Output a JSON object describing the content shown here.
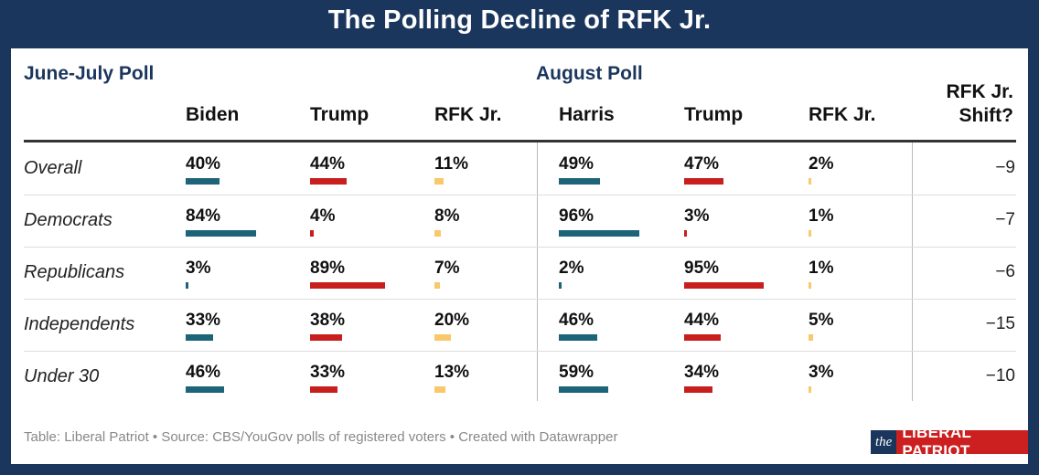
{
  "title": "The Polling Decline of RFK Jr.",
  "groups": {
    "first": "June-July Poll",
    "second": "August Poll"
  },
  "columns": [
    "Biden",
    "Trump",
    "RFK Jr.",
    "Harris",
    "Trump",
    "RFK Jr."
  ],
  "shift_header": "RFK Jr. Shift?",
  "colors": {
    "democrat": "#1d6479",
    "republican": "#c81e1e",
    "rfk": "#f8c86a",
    "background": "#1b365d"
  },
  "source": "Table: Liberal Patriot • Source: CBS/YouGov polls of registered voters • Created with Datawrapper",
  "logo": {
    "the": "the",
    "name": "LIBERAL PATRIOT"
  },
  "chart_data": {
    "type": "table",
    "title": "The Polling Decline of RFK Jr.",
    "column_groups": [
      {
        "name": "June-July Poll",
        "columns": [
          "Biden",
          "Trump",
          "RFK Jr."
        ]
      },
      {
        "name": "August Poll",
        "columns": [
          "Harris",
          "Trump",
          "RFK Jr."
        ]
      }
    ],
    "shift_column": "RFK Jr. Shift?",
    "rows": [
      {
        "label": "Overall",
        "display": [
          "40%",
          "44%",
          "11%",
          "49%",
          "47%",
          "2%"
        ],
        "values": [
          40,
          44,
          11,
          49,
          47,
          2
        ],
        "shift": "−9"
      },
      {
        "label": "Democrats",
        "display": [
          "84%",
          "4%",
          "8%",
          "96%",
          "3%",
          "1%"
        ],
        "values": [
          84,
          4,
          8,
          96,
          3,
          1
        ],
        "shift": "−7"
      },
      {
        "label": "Republicans",
        "display": [
          "3%",
          "89%",
          "7%",
          "2%",
          "95%",
          "1%"
        ],
        "values": [
          3,
          89,
          7,
          2,
          95,
          1
        ],
        "shift": "−6"
      },
      {
        "label": "Independents",
        "display": [
          "33%",
          "38%",
          "20%",
          "46%",
          "44%",
          "5%"
        ],
        "values": [
          33,
          38,
          20,
          46,
          44,
          5
        ],
        "shift": "−15"
      },
      {
        "label": "Under 30",
        "display": [
          "46%",
          "33%",
          "13%",
          "59%",
          "34%",
          "3%"
        ],
        "values": [
          46,
          33,
          13,
          59,
          34,
          3
        ],
        "shift": "−10"
      }
    ]
  }
}
